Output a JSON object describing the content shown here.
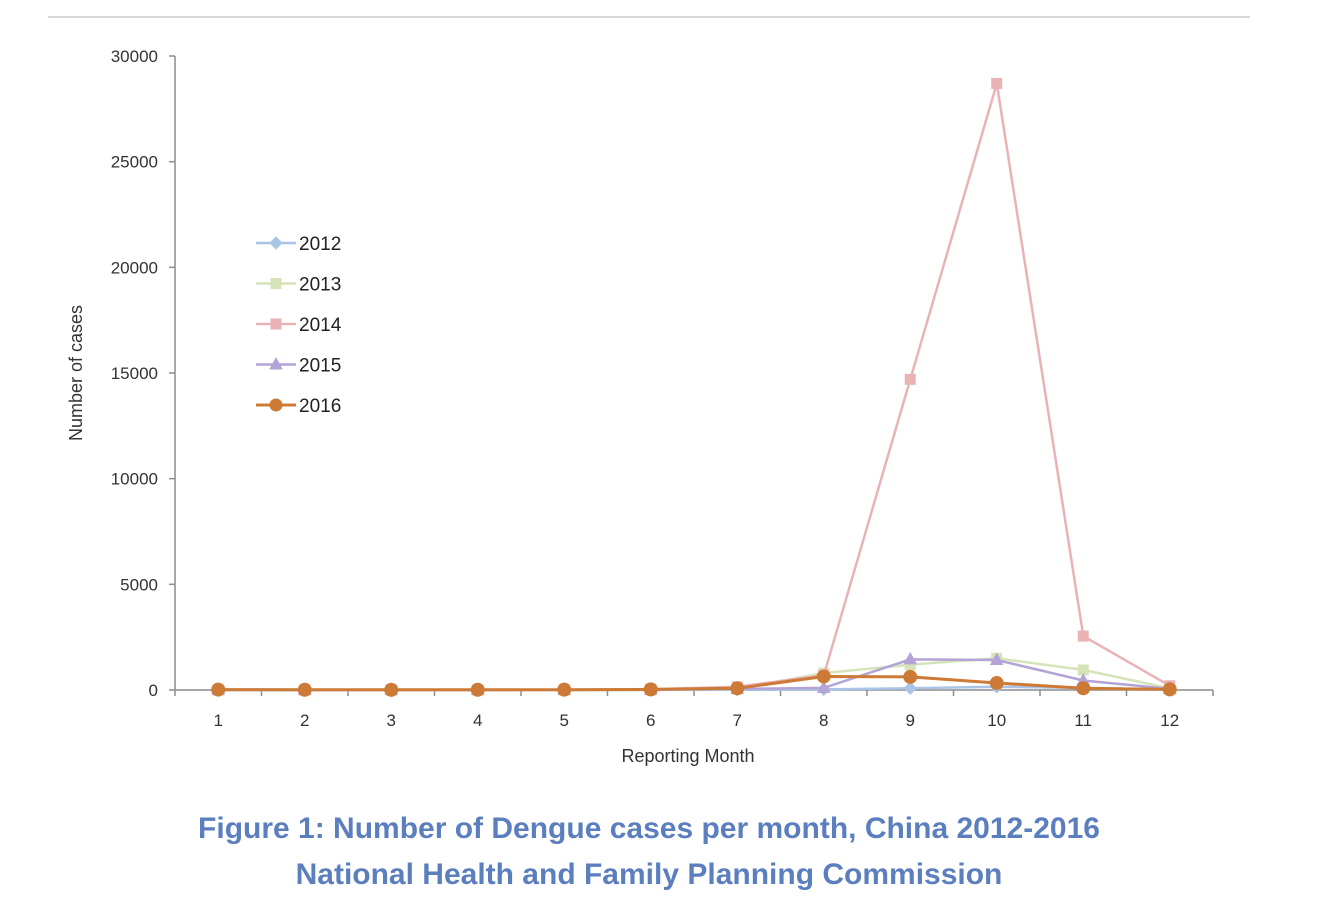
{
  "caption": {
    "line1": "Figure 1: Number of Dengue cases per month, China 2012-2016",
    "line2": "National Health and Family Planning Commission"
  },
  "chart_data": {
    "type": "line",
    "title": "",
    "xlabel": "Reporting Month",
    "ylabel": "Number of cases",
    "categories": [
      "1",
      "2",
      "3",
      "4",
      "5",
      "6",
      "7",
      "8",
      "9",
      "10",
      "11",
      "12"
    ],
    "ylim": [
      0,
      30000
    ],
    "yticks": [
      0,
      5000,
      10000,
      15000,
      20000,
      25000,
      30000
    ],
    "grid": false,
    "legend_position": "upper-left",
    "series": [
      {
        "name": "2012",
        "color": "#a9c4e6",
        "marker": "diamond",
        "values": [
          2,
          1,
          2,
          2,
          3,
          5,
          10,
          30,
          80,
          150,
          100,
          20
        ]
      },
      {
        "name": "2013",
        "color": "#d5e4b8",
        "marker": "square",
        "values": [
          5,
          3,
          3,
          4,
          5,
          10,
          50,
          800,
          1200,
          1500,
          950,
          80
        ]
      },
      {
        "name": "2014",
        "color": "#e9b3b6",
        "marker": "square",
        "values": [
          10,
          5,
          4,
          5,
          10,
          40,
          150,
          700,
          14700,
          28700,
          2550,
          200
        ]
      },
      {
        "name": "2015",
        "color": "#b3a3d6",
        "marker": "triangle",
        "values": [
          3,
          2,
          3,
          3,
          5,
          10,
          50,
          100,
          1450,
          1420,
          450,
          50
        ]
      },
      {
        "name": "2016",
        "color": "#cc7a35",
        "marker": "circle",
        "values": [
          20,
          10,
          8,
          10,
          15,
          30,
          80,
          640,
          620,
          330,
          80,
          30
        ]
      }
    ]
  }
}
